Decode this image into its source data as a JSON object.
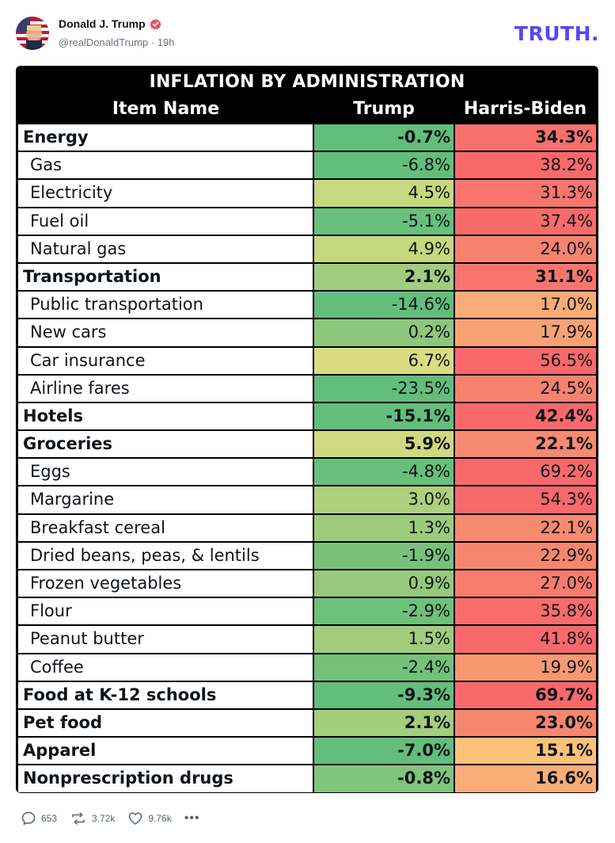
{
  "post": {
    "author_name": "Donald J. Trump",
    "handle": "@realDonaldTrump",
    "separator": " · ",
    "time_ago": "19h",
    "brand": "TRUTH",
    "brand_dot": "."
  },
  "table": {
    "title": "INFLATION BY ADMINISTRATION",
    "headers": {
      "item": "Item Name",
      "trump": "Trump",
      "harris": "Harris-Biden"
    },
    "rows": [
      {
        "name": "Energy",
        "trump": "-0.7%",
        "harris": "34.3%",
        "bold": true,
        "trump_color": "#63be7b",
        "harris_color": "#f8716c"
      },
      {
        "name": "Gas",
        "trump": "-6.8%",
        "harris": "38.2%",
        "bold": false,
        "trump_color": "#64be7b",
        "harris_color": "#f8696b"
      },
      {
        "name": "Electricity",
        "trump": "4.5%",
        "harris": "31.3%",
        "bold": false,
        "trump_color": "#c8d87e",
        "harris_color": "#f8756d"
      },
      {
        "name": "Fuel oil",
        "trump": "-5.1%",
        "harris": "37.4%",
        "bold": false,
        "trump_color": "#67bf7b",
        "harris_color": "#f86b6b"
      },
      {
        "name": "Natural gas",
        "trump": "4.9%",
        "harris": "24.0%",
        "bold": false,
        "trump_color": "#c7d77e",
        "harris_color": "#f7836f"
      },
      {
        "name": "Transportation",
        "trump": "2.1%",
        "harris": "31.1%",
        "bold": true,
        "trump_color": "#a2cd7c",
        "harris_color": "#f8756d"
      },
      {
        "name": "Public transportation",
        "trump": "-14.6%",
        "harris": "17.0%",
        "bold": false,
        "trump_color": "#63be7b",
        "harris_color": "#f9ac76"
      },
      {
        "name": "New cars",
        "trump": "0.2%",
        "harris": "17.9%",
        "bold": false,
        "trump_color": "#8ec77c",
        "harris_color": "#f9a274"
      },
      {
        "name": "Car insurance",
        "trump": "6.7%",
        "harris": "56.5%",
        "bold": false,
        "trump_color": "#d9dc80",
        "harris_color": "#f8696b"
      },
      {
        "name": "Airline fares",
        "trump": "-23.5%",
        "harris": "24.5%",
        "bold": false,
        "trump_color": "#63be7b",
        "harris_color": "#f7836f"
      },
      {
        "name": "Hotels",
        "trump": "-15.1%",
        "harris": "42.4%",
        "bold": true,
        "trump_color": "#63be7b",
        "harris_color": "#f8696b"
      },
      {
        "name": "Groceries",
        "trump": "5.9%",
        "harris": "22.1%",
        "bold": true,
        "trump_color": "#cfd97f",
        "harris_color": "#f78a70"
      },
      {
        "name": "Eggs",
        "trump": "-4.8%",
        "harris": "69.2%",
        "bold": false,
        "trump_color": "#68bf7b",
        "harris_color": "#f8696b"
      },
      {
        "name": "Margarine",
        "trump": "3.0%",
        "harris": "54.3%",
        "bold": false,
        "trump_color": "#aed07d",
        "harris_color": "#f8696b"
      },
      {
        "name": "Breakfast cereal",
        "trump": "1.3%",
        "harris": "22.1%",
        "bold": false,
        "trump_color": "#9ccb7c",
        "harris_color": "#f7896f"
      },
      {
        "name": "Dried beans, peas, & lentils",
        "trump": "-1.9%",
        "harris": "22.9%",
        "bold": false,
        "trump_color": "#79c17b",
        "harris_color": "#f7866f"
      },
      {
        "name": "Frozen vegetables",
        "trump": "0.9%",
        "harris": "27.0%",
        "bold": false,
        "trump_color": "#96c97c",
        "harris_color": "#f87c6e"
      },
      {
        "name": "Flour",
        "trump": "-2.9%",
        "harris": "35.8%",
        "bold": false,
        "trump_color": "#6fc07b",
        "harris_color": "#f86d6b"
      },
      {
        "name": "Peanut butter",
        "trump": "1.5%",
        "harris": "41.8%",
        "bold": false,
        "trump_color": "#a0cc7c",
        "harris_color": "#f8696b"
      },
      {
        "name": "Coffee",
        "trump": "-2.4%",
        "harris": "19.9%",
        "bold": false,
        "trump_color": "#74c17b",
        "harris_color": "#f89872"
      },
      {
        "name": "Food at K-12 schools",
        "trump": "-9.3%",
        "harris": "69.7%",
        "bold": true,
        "trump_color": "#63be7b",
        "harris_color": "#f8696b"
      },
      {
        "name": "Pet food",
        "trump": "2.1%",
        "harris": "23.0%",
        "bold": true,
        "trump_color": "#a4cd7c",
        "harris_color": "#f7866f"
      },
      {
        "name": "Apparel",
        "trump": "-7.0%",
        "harris": "15.1%",
        "bold": true,
        "trump_color": "#63be7b",
        "harris_color": "#fbc27a"
      },
      {
        "name": "Nonprescription drugs",
        "trump": "-0.8%",
        "harris": "16.6%",
        "bold": true,
        "trump_color": "#81c47c",
        "harris_color": "#faae77"
      }
    ]
  },
  "actions": {
    "replies": "653",
    "retruths": "3.72k",
    "likes": "9.76k",
    "more": "•••"
  }
}
